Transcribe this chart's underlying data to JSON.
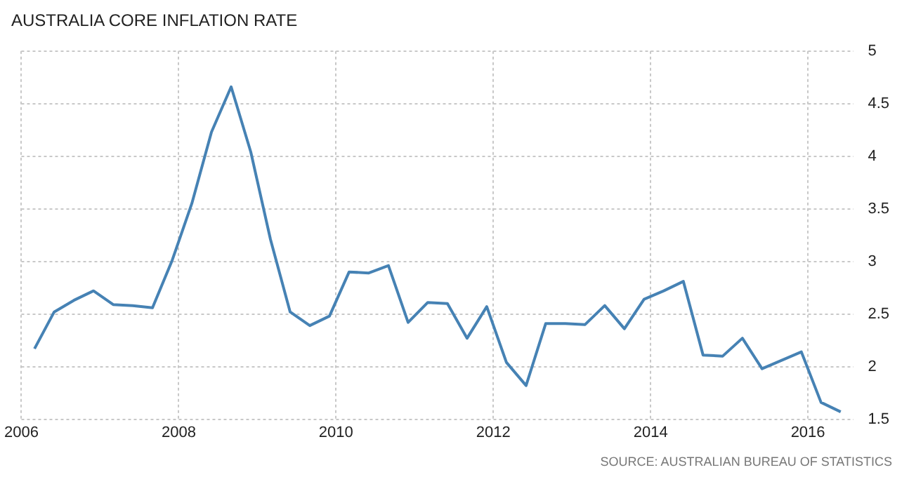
{
  "chart_data": {
    "type": "line",
    "title": "AUSTRALIA CORE INFLATION RATE",
    "x": [
      "2006-03",
      "2006-06",
      "2006-09",
      "2006-12",
      "2007-03",
      "2007-06",
      "2007-09",
      "2007-12",
      "2008-03",
      "2008-06",
      "2008-09",
      "2008-12",
      "2009-03",
      "2009-06",
      "2009-09",
      "2009-12",
      "2010-03",
      "2010-06",
      "2010-09",
      "2010-12",
      "2011-03",
      "2011-06",
      "2011-09",
      "2011-12",
      "2012-03",
      "2012-06",
      "2012-09",
      "2012-12",
      "2013-03",
      "2013-06",
      "2013-09",
      "2013-12",
      "2014-03",
      "2014-06",
      "2014-09",
      "2014-12",
      "2015-03",
      "2015-06",
      "2015-09",
      "2015-12",
      "2016-03",
      "2016-06"
    ],
    "series": [
      {
        "color": "#4682b4",
        "values": [
          2.17,
          2.52,
          2.63,
          2.72,
          2.59,
          2.58,
          2.56,
          3.01,
          3.55,
          4.23,
          4.66,
          4.04,
          3.21,
          2.52,
          2.39,
          2.48,
          2.9,
          2.89,
          2.96,
          2.42,
          2.61,
          2.6,
          2.27,
          2.57,
          2.04,
          1.82,
          2.41,
          2.41,
          2.4,
          2.58,
          2.36,
          2.64,
          2.72,
          2.81,
          2.11,
          2.1,
          2.27,
          1.98,
          2.06,
          2.14,
          1.66,
          1.57
        ]
      }
    ],
    "xlim": [
      "2006-01",
      "2016-08"
    ],
    "xticks": [
      "2006",
      "2008",
      "2010",
      "2012",
      "2014",
      "2016"
    ],
    "ylim": [
      1.5,
      5
    ],
    "yticks": [
      1.5,
      2,
      2.5,
      3,
      3.5,
      4,
      4.5,
      5
    ],
    "grid": true,
    "legend": false,
    "marker": "none",
    "line_style": "solid",
    "annotations": [
      "SOURCE: AUSTRALIAN BUREAU OF STATISTICS"
    ]
  }
}
